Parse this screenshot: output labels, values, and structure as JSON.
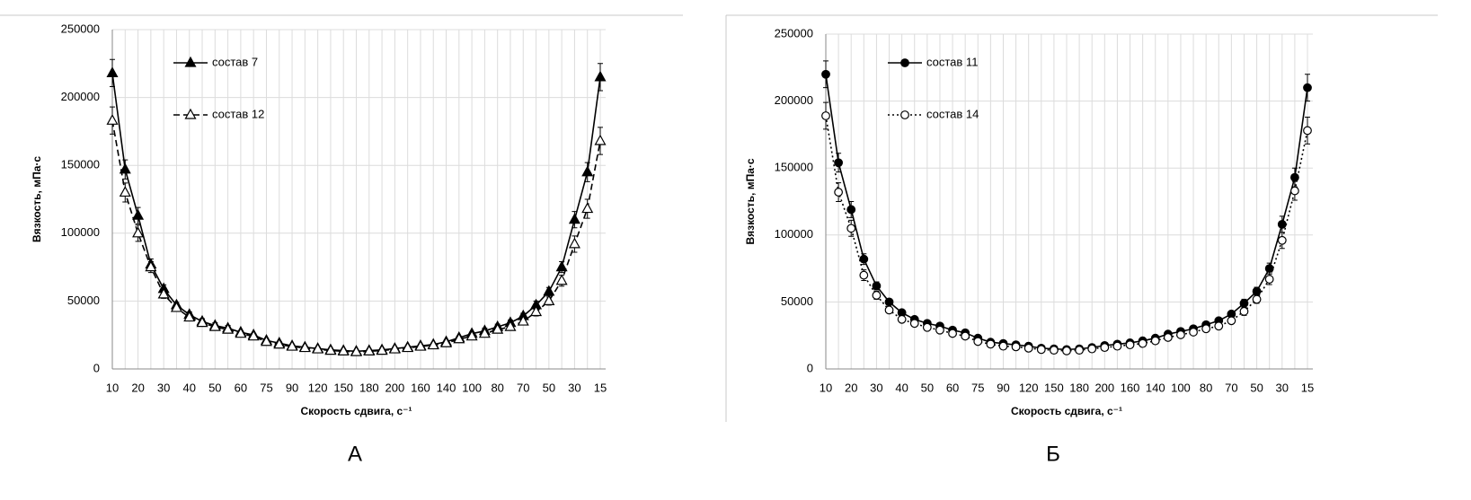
{
  "chart_data": [
    {
      "type": "line",
      "panel_label": "А",
      "x_label": "Скорость сдвига, с⁻¹",
      "y_label": "Вязкость, мПа·с",
      "categories": [
        10,
        null,
        20,
        null,
        30,
        null,
        40,
        null,
        50,
        null,
        60,
        null,
        75,
        null,
        90,
        null,
        120,
        null,
        150,
        null,
        180,
        null,
        200,
        null,
        160,
        null,
        140,
        null,
        100,
        null,
        80,
        null,
        70,
        null,
        50,
        null,
        30,
        null,
        15
      ],
      "ylim": [
        0,
        250000
      ],
      "yticks": [
        0,
        50000,
        100000,
        150000,
        200000,
        250000
      ],
      "grid": true,
      "series": [
        {
          "name": "состав 7",
          "color": "#000000",
          "dash": "solid",
          "marker": "triangle",
          "marker_filled": true,
          "values": [
            218000,
            147000,
            113000,
            77000,
            59000,
            47000,
            40000,
            35000,
            32000,
            30000,
            27000,
            25000,
            21000,
            19000,
            17000,
            16000,
            15000,
            14000,
            13500,
            13000,
            13500,
            14000,
            15000,
            16000,
            17000,
            18000,
            20000,
            23000,
            26000,
            28000,
            31000,
            34000,
            39000,
            47000,
            57000,
            75000,
            110000,
            145000,
            215000
          ],
          "errors": [
            10000,
            7000,
            6000,
            4000,
            3000,
            2000,
            2000,
            2000,
            2000,
            2000,
            1000,
            1000,
            1000,
            1000,
            1000,
            1000,
            1000,
            1000,
            1000,
            1000,
            1000,
            1000,
            1000,
            1000,
            1000,
            1000,
            1000,
            1000,
            1000,
            2000,
            2000,
            2000,
            2000,
            3000,
            3000,
            4000,
            6000,
            7000,
            10000
          ]
        },
        {
          "name": "состав 12",
          "color": "#000000",
          "dash": "dashed",
          "marker": "triangle",
          "marker_filled": false,
          "values": [
            183000,
            130000,
            100000,
            75000,
            55000,
            45000,
            38000,
            34000,
            31000,
            29000,
            26000,
            24000,
            20000,
            18000,
            16500,
            15500,
            14500,
            13500,
            13000,
            12500,
            13000,
            13500,
            14500,
            15500,
            16500,
            17500,
            19000,
            22000,
            24000,
            26000,
            29000,
            31000,
            35000,
            42000,
            50000,
            65000,
            92000,
            118000,
            168000
          ],
          "errors": [
            10000,
            7000,
            6000,
            4000,
            3000,
            2000,
            2000,
            2000,
            2000,
            2000,
            1000,
            1000,
            1000,
            1000,
            1000,
            1000,
            1000,
            1000,
            1000,
            1000,
            1000,
            1000,
            1000,
            1000,
            1000,
            1000,
            1000,
            1000,
            1000,
            2000,
            2000,
            2000,
            2000,
            3000,
            3000,
            4000,
            6000,
            7000,
            10000
          ]
        }
      ]
    },
    {
      "type": "line",
      "panel_label": "Б",
      "x_label": "Скорость сдвига, с⁻¹",
      "y_label": "Вязкость, мПа·с",
      "categories": [
        10,
        null,
        20,
        null,
        30,
        null,
        40,
        null,
        50,
        null,
        60,
        null,
        75,
        null,
        90,
        null,
        120,
        null,
        150,
        null,
        180,
        null,
        200,
        null,
        160,
        null,
        140,
        null,
        100,
        null,
        80,
        null,
        70,
        null,
        50,
        null,
        30,
        null,
        15
      ],
      "ylim": [
        0,
        250000
      ],
      "yticks": [
        0,
        50000,
        100000,
        150000,
        200000,
        250000
      ],
      "grid": true,
      "series": [
        {
          "name": "состав 11",
          "color": "#000000",
          "dash": "solid",
          "marker": "circle",
          "marker_filled": true,
          "values": [
            220000,
            154000,
            119000,
            82000,
            62000,
            50000,
            42000,
            37000,
            34000,
            32000,
            29000,
            27000,
            23000,
            20000,
            19000,
            18000,
            17000,
            15500,
            15000,
            14500,
            15000,
            16000,
            17500,
            18500,
            19500,
            21000,
            23000,
            26000,
            28000,
            30000,
            33000,
            36000,
            41000,
            49000,
            58000,
            75000,
            108000,
            143000,
            210000
          ],
          "errors": [
            10000,
            7000,
            6000,
            4000,
            3000,
            2000,
            2000,
            2000,
            2000,
            2000,
            1000,
            1000,
            1000,
            1000,
            1000,
            1000,
            1000,
            1000,
            1000,
            1000,
            1000,
            1000,
            1000,
            1000,
            1000,
            1000,
            1000,
            1000,
            1000,
            2000,
            2000,
            2000,
            2000,
            3000,
            3000,
            4000,
            6000,
            7000,
            10000
          ]
        },
        {
          "name": "состав 14",
          "color": "#000000",
          "dash": "dotted",
          "marker": "circle",
          "marker_filled": false,
          "values": [
            189000,
            132000,
            105000,
            70000,
            55000,
            44000,
            37000,
            34000,
            31000,
            29000,
            26500,
            24500,
            20500,
            18500,
            17000,
            16500,
            15500,
            14500,
            14000,
            13500,
            14000,
            15000,
            16000,
            17000,
            18000,
            19000,
            21000,
            23500,
            25500,
            27500,
            30000,
            32000,
            36000,
            43000,
            52000,
            67000,
            96000,
            133000,
            178000
          ],
          "errors": [
            10000,
            7000,
            6000,
            4000,
            3000,
            2000,
            2000,
            2000,
            2000,
            2000,
            1000,
            1000,
            1000,
            1000,
            1000,
            1000,
            1000,
            1000,
            1000,
            1000,
            1000,
            1000,
            1000,
            1000,
            1000,
            1000,
            1000,
            1000,
            1000,
            2000,
            2000,
            2000,
            2000,
            3000,
            3000,
            4000,
            6000,
            7000,
            10000
          ]
        }
      ]
    }
  ]
}
